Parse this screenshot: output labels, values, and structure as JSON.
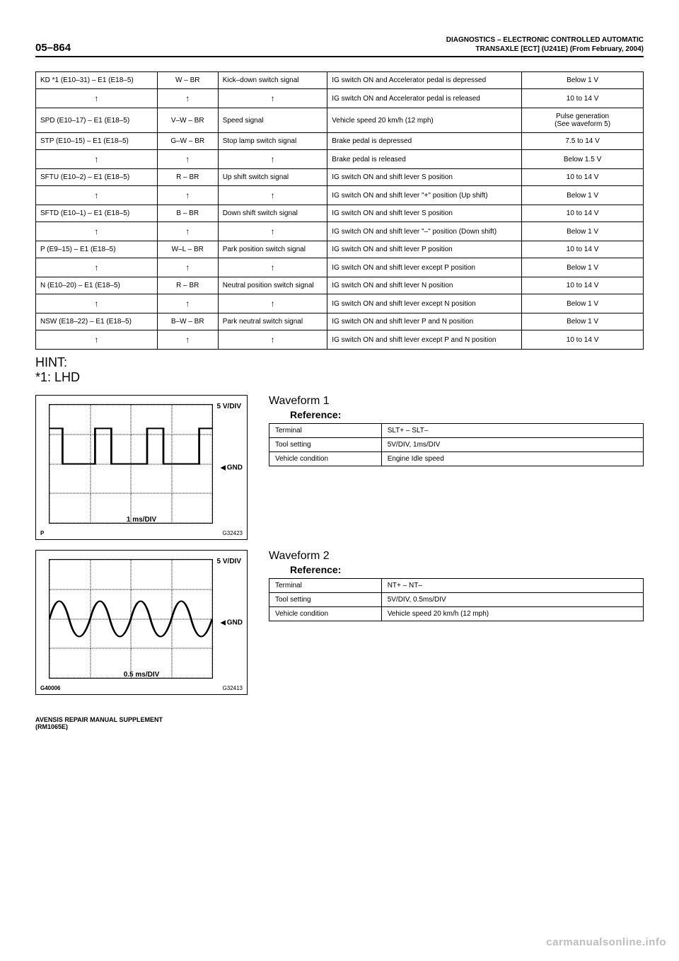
{
  "header": {
    "page_num": "05–864",
    "title_line1": "DIAGNOSTICS   –   ELECTRONIC CONTROLLED AUTOMATIC",
    "title_line2": "TRANSAXLE [ECT] (U241E) (From February, 2004)"
  },
  "signal_table": {
    "rows": [
      {
        "c0": "KD *1 (E10–31) – E1 (E18–5)",
        "c1": "W – BR",
        "c2": "Kick–down switch signal",
        "c3": "IG switch ON and Accelerator pedal is depressed",
        "c4": "Below 1 V"
      },
      {
        "c0": "↑",
        "c1": "↑",
        "c2": "↑",
        "c3": "IG switch ON and Accelerator pedal is released",
        "c4": "10 to 14 V",
        "arrow": true
      },
      {
        "c0": "SPD (E10–17) – E1 (E18–5)",
        "c1": "V–W – BR",
        "c2": "Speed signal",
        "c3": "Vehicle speed 20 km/h (12 mph)",
        "c4": "Pulse generation\n(See waveform 5)"
      },
      {
        "c0": "STP (E10–15) – E1 (E18–5)",
        "c1": "G–W – BR",
        "c2": "Stop lamp switch signal",
        "c3": "Brake pedal is depressed",
        "c4": "7.5 to 14 V"
      },
      {
        "c0": "↑",
        "c1": "↑",
        "c2": "↑",
        "c3": "Brake pedal is released",
        "c4": "Below 1.5 V",
        "arrow": true
      },
      {
        "c0": "SFTU (E10–2) – E1 (E18–5)",
        "c1": "R – BR",
        "c2": "Up shift switch signal",
        "c3": "IG switch ON and shift lever S position",
        "c4": "10 to 14 V"
      },
      {
        "c0": "↑",
        "c1": "↑",
        "c2": "↑",
        "c3": "IG switch ON and shift lever \"+\" position (Up shift)",
        "c4": "Below 1 V",
        "arrow": true
      },
      {
        "c0": "SFTD (E10–1) – E1 (E18–5)",
        "c1": "B – BR",
        "c2": "Down shift switch signal",
        "c3": "IG switch ON and shift lever S position",
        "c4": "10 to 14 V"
      },
      {
        "c0": "↑",
        "c1": "↑",
        "c2": "↑",
        "c3": "IG switch ON and shift lever \"–\" position (Down shift)",
        "c4": "Below 1 V",
        "arrow": true
      },
      {
        "c0": "P (E9–15) – E1 (E18–5)",
        "c1": "W–L – BR",
        "c2": "Park position switch signal",
        "c3": "IG switch ON and shift lever P position",
        "c4": "10 to 14 V"
      },
      {
        "c0": "↑",
        "c1": "↑",
        "c2": "↑",
        "c3": "IG switch ON and shift lever except P position",
        "c4": "Below 1 V",
        "arrow": true
      },
      {
        "c0": "N (E10–20) – E1 (E18–5)",
        "c1": "R – BR",
        "c2": "Neutral position switch signal",
        "c3": "IG switch ON and shift lever N position",
        "c4": "10 to 14 V"
      },
      {
        "c0": "↑",
        "c1": "↑",
        "c2": "↑",
        "c3": "IG switch ON and shift lever except N position",
        "c4": "Below 1 V",
        "arrow": true
      },
      {
        "c0": "NSW (E18–22) – E1 (E18–5)",
        "c1": "B–W – BR",
        "c2": "Park neutral switch signal",
        "c3": "IG switch ON and shift lever P and N position",
        "c4": "Below 1 V"
      },
      {
        "c0": "↑",
        "c1": "↑",
        "c2": "↑",
        "c3": "IG switch ON and shift lever except P and N position",
        "c4": "10 to 14 V",
        "arrow": true
      }
    ]
  },
  "hint": {
    "line1": "HINT:",
    "line2": "*1: LHD"
  },
  "waveform1": {
    "title": "Waveform 1",
    "subtitle": "Reference:",
    "scope": {
      "vdiv": "5 V/DIV",
      "gnd": "GND",
      "tdiv": "1 ms/DIV",
      "ref": "G32423",
      "bl": "P"
    },
    "type": "square",
    "rows": [
      {
        "k": "Terminal",
        "v": "SLT+ – SLT–"
      },
      {
        "k": "Tool setting",
        "v": "5V/DIV, 1ms/DIV"
      },
      {
        "k": "Vehicle condition",
        "v": "Engine Idle speed"
      }
    ]
  },
  "waveform2": {
    "title": "Waveform 2",
    "subtitle": "Reference:",
    "scope": {
      "vdiv": "5 V/DIV",
      "gnd": "GND",
      "tdiv": "0.5 ms/DIV",
      "ref": "G32413",
      "bl": "G40006"
    },
    "type": "sine",
    "rows": [
      {
        "k": "Terminal",
        "v": "NT+ – NT–"
      },
      {
        "k": "Tool setting",
        "v": "5V/DIV, 0.5ms/DIV"
      },
      {
        "k": "Vehicle condition",
        "v": "Vehicle speed 20 km/h (12 mph)"
      }
    ]
  },
  "footer": {
    "line1": "AVENSIS REPAIR MANUAL SUPPLEMENT",
    "line2": "(RM1065E)"
  },
  "watermark": "carmanualsonline.info"
}
